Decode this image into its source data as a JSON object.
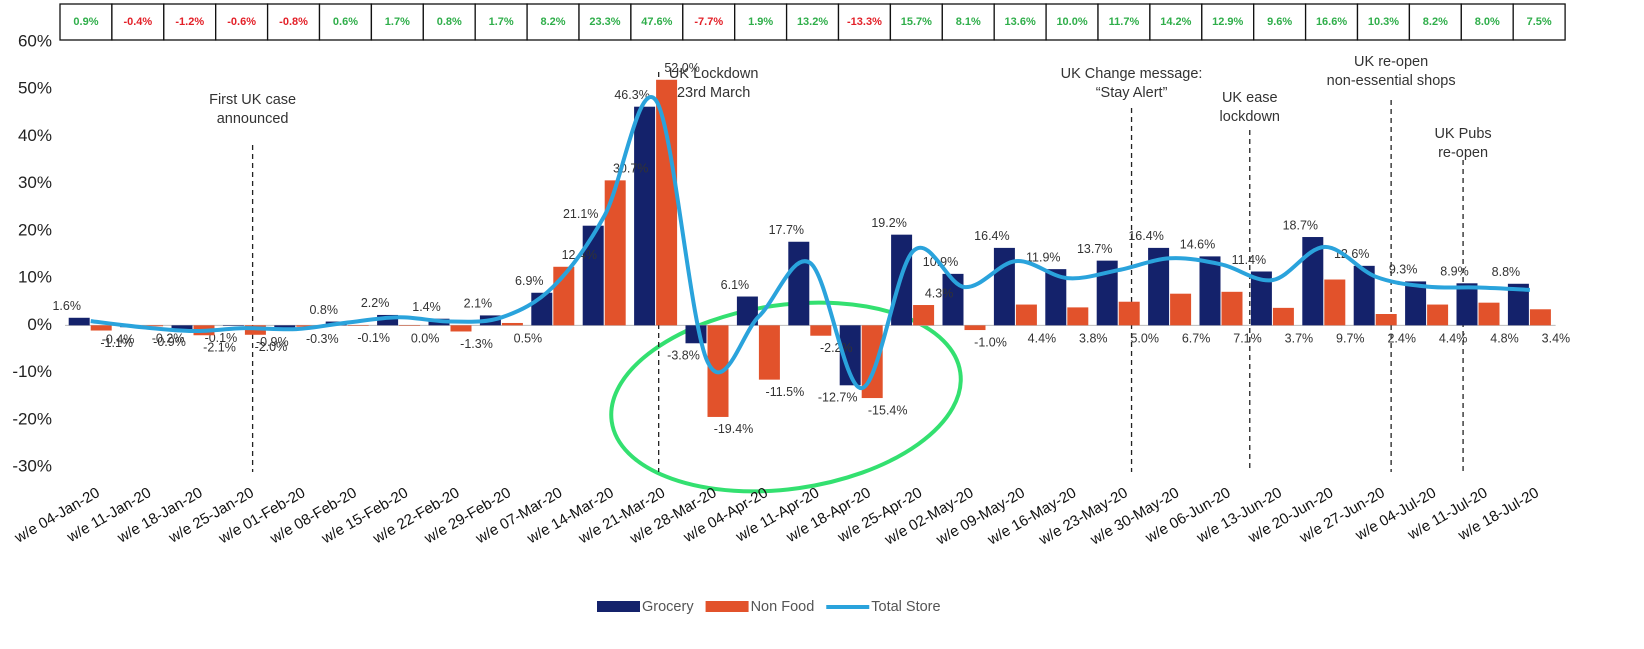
{
  "chart_data": {
    "type": "bar_line",
    "categories": [
      "w/e 04-Jan-20",
      "w/e 11-Jan-20",
      "w/e 18-Jan-20",
      "w/e 25-Jan-20",
      "w/e 01-Feb-20",
      "w/e 08-Feb-20",
      "w/e 15-Feb-20",
      "w/e 22-Feb-20",
      "w/e 29-Feb-20",
      "w/e 07-Mar-20",
      "w/e 14-Mar-20",
      "w/e 21-Mar-20",
      "w/e 28-Mar-20",
      "w/e 04-Apr-20",
      "w/e 11-Apr-20",
      "w/e 18-Apr-20",
      "w/e 25-Apr-20",
      "w/e 02-May-20",
      "w/e 09-May-20",
      "w/e 16-May-20",
      "w/e 23-May-20",
      "w/e 30-May-20",
      "w/e 06-Jun-20",
      "w/e 13-Jun-20",
      "w/e 20-Jun-20",
      "w/e 27-Jun-20",
      "w/e 04-Jul-20",
      "w/e 11-Jul-20",
      "w/e 18-Jul-20"
    ],
    "series": [
      {
        "name": "Grocery",
        "kind": "bar",
        "color": "#14226b",
        "values": [
          1.6,
          -0.4,
          -0.9,
          -0.1,
          -0.9,
          0.8,
          2.2,
          1.4,
          2.1,
          6.9,
          21.1,
          46.3,
          -3.8,
          6.1,
          17.7,
          -12.7,
          19.2,
          10.9,
          16.4,
          11.9,
          13.7,
          16.4,
          14.6,
          11.4,
          18.7,
          12.6,
          9.3,
          8.9,
          8.8
        ],
        "value_labels": [
          "1.6%",
          "-0.4%",
          "-0.9%",
          "-0.1%",
          "-0.9%",
          "0.8%",
          "2.2%",
          "1.4%",
          "2.1%",
          "6.9%",
          "21.1%",
          "46.3%",
          "-3.8%",
          "6.1%",
          "17.7%",
          "-12.7%",
          "19.2%",
          "10.9%",
          "16.4%",
          "11.9%",
          "13.7%",
          "16.4%",
          "14.6%",
          "11.4%",
          "18.7%",
          "12.6%",
          "9.3%",
          "8.9%",
          "8.8%"
        ]
      },
      {
        "name": "Non Food",
        "kind": "bar",
        "color": "#e2522b",
        "values": [
          -1.1,
          -0.2,
          -2.1,
          -2.0,
          -0.3,
          -0.1,
          0.0,
          -1.3,
          0.5,
          12.4,
          30.7,
          52.0,
          -19.4,
          -11.5,
          -2.2,
          -15.4,
          4.3,
          -1.0,
          4.4,
          3.8,
          5.0,
          6.7,
          7.1,
          3.7,
          9.7,
          2.4,
          4.4,
          4.8,
          3.4
        ],
        "value_labels": [
          "-1.1%",
          "-0.2%",
          "-2.1%",
          "-2.0%",
          "-0.3%",
          "-0.1%",
          "0.0%",
          "-1.3%",
          "0.5%",
          "12.4%",
          "30.7%",
          "52.0%",
          "-19.4%",
          "-11.5%",
          "-2.2%",
          "-15.4%",
          "4.3%",
          "-1.0%",
          "4.4%",
          "3.8%",
          "5.0%",
          "6.7%",
          "7.1%",
          "3.7%",
          "9.7%",
          "2.4%",
          "4.4%",
          "4.8%",
          "3.4%"
        ]
      },
      {
        "name": "Total Store",
        "kind": "line",
        "color": "#2aa3dc",
        "values": [
          0.9,
          -0.4,
          -1.2,
          -0.6,
          -0.8,
          0.6,
          1.7,
          0.8,
          1.7,
          8.2,
          23.3,
          47.6,
          -7.7,
          1.9,
          13.2,
          -13.3,
          15.7,
          8.1,
          13.6,
          10.0,
          11.7,
          14.2,
          12.9,
          9.6,
          16.6,
          10.3,
          8.2,
          8.0,
          7.5
        ],
        "value_labels": [
          "0.9%",
          "-0.4%",
          "-1.2%",
          "-0.6%",
          "-0.8%",
          "0.6%",
          "1.7%",
          "0.8%",
          "1.7%",
          "8.2%",
          "23.3%",
          "47.6%",
          "-7.7%",
          "1.9%",
          "13.2%",
          "-13.3%",
          "15.7%",
          "8.1%",
          "13.6%",
          "10.0%",
          "11.7%",
          "14.2%",
          "12.9%",
          "9.6%",
          "16.6%",
          "10.3%",
          "8.2%",
          "8.0%",
          "7.5%"
        ]
      }
    ],
    "top_row_colors": {
      "positive": "#2fae4a",
      "negative": "#e32028"
    },
    "ylim": [
      -30,
      60
    ],
    "yticks": [
      {
        "value": -30,
        "label": "-30%"
      },
      {
        "value": -20,
        "label": "-20%"
      },
      {
        "value": -10,
        "label": "-10%"
      },
      {
        "value": 0,
        "label": "0%"
      },
      {
        "value": 10,
        "label": "10%"
      },
      {
        "value": 20,
        "label": "20%"
      },
      {
        "value": 30,
        "label": "30%"
      },
      {
        "value": 40,
        "label": "40%"
      },
      {
        "value": 50,
        "label": "50%"
      },
      {
        "value": 60,
        "label": "60%"
      }
    ],
    "annotations": [
      {
        "lines": [
          "First UK case",
          "announced"
        ]
      },
      {
        "lines": [
          "UK Lockdown",
          "23rd March"
        ]
      },
      {
        "lines": [
          "UK Change message:",
          "“Stay Alert”"
        ]
      },
      {
        "lines": [
          "UK ease",
          "lockdown"
        ]
      },
      {
        "lines": [
          "UK re-open",
          "non-essential shops"
        ]
      },
      {
        "lines": [
          "UK Pubs",
          "re-open"
        ]
      }
    ],
    "legend": "bottom"
  }
}
